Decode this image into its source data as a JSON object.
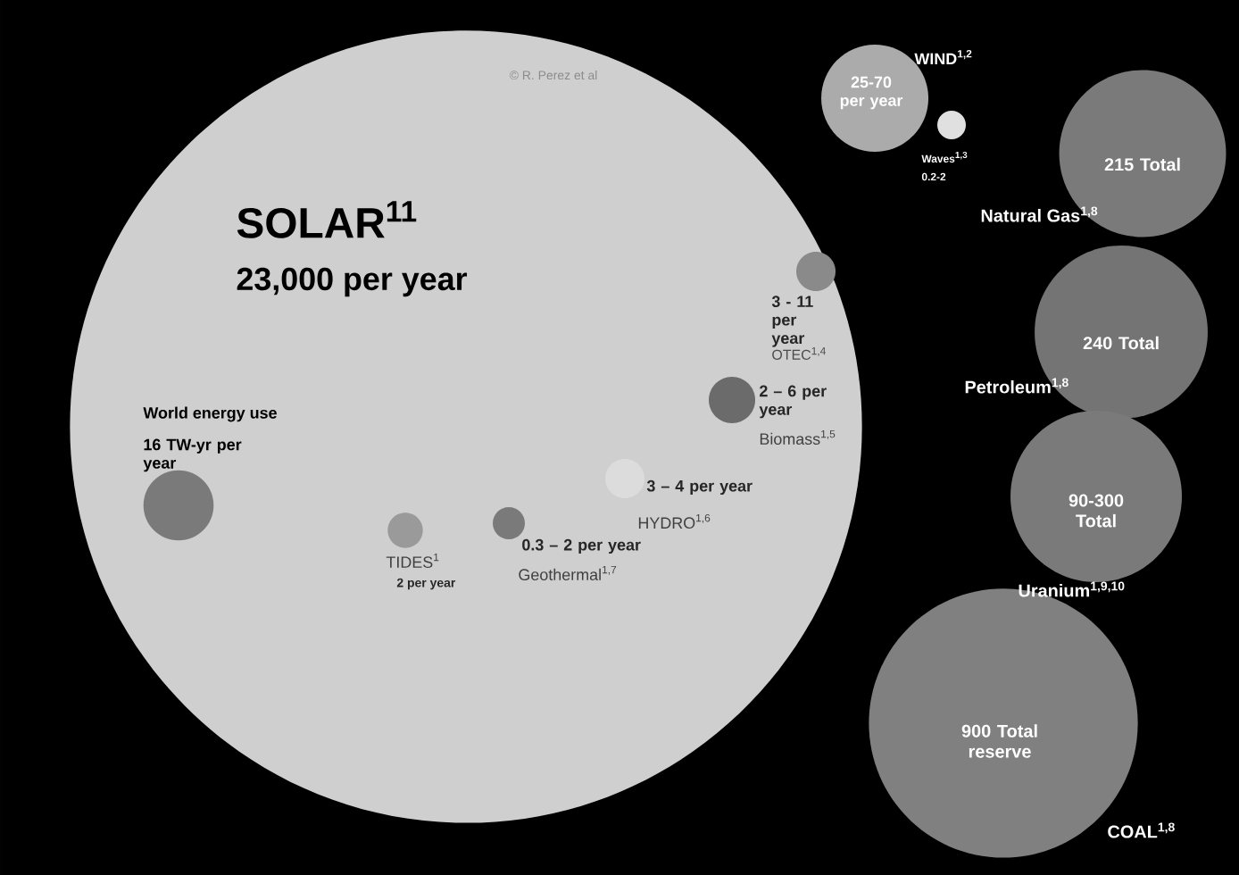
{
  "chart_data": {
    "type": "other",
    "categories": [
      "SOLAR$^{11}$",
      "WIND$^{1,2}$",
      "Waves$^{1,3}$",
      "OTEC$^{1,4}$",
      "Biomass$^{1,5}$",
      "HYDRO$^{1,6}$",
      "Geothermal$^{1,7}$",
      "TIDES$^{1}$",
      "Natural Gas$^{1,8}$",
      "Petroleum$^{1,8}$",
      "Uranium$^{1,9,10}$",
      "COAL$^{1,8}$",
      "World energy use"
    ],
    "value_labels": [
      "23,000 per year",
      "25-70 per year",
      "0.2-2",
      "3 - 11 per year",
      "2 – 6 per year",
      "3 – 4 per year",
      "0.3 – 2 per year",
      "2 per year",
      "215 Total",
      "240 Total",
      "90-300 Total",
      "900 Total reserve",
      "16 TW-yr per year"
    ],
    "values": [
      23000,
      null,
      null,
      null,
      null,
      null,
      null,
      2,
      215,
      240,
      null,
      900,
      16
    ],
    "colors": [
      "#cfcfcf",
      "#ababab",
      "#e0e0e0",
      "#8a8a8a",
      "#6b6b6b",
      "#dcdcdc",
      "#7a7a7a",
      "#9a9a9a",
      "#7a7a7a",
      "#747474",
      "#7a7a7a",
      "#808080",
      "#7a7a7a"
    ],
    "annotations": [
      "© R. Perez et al"
    ]
  }
}
